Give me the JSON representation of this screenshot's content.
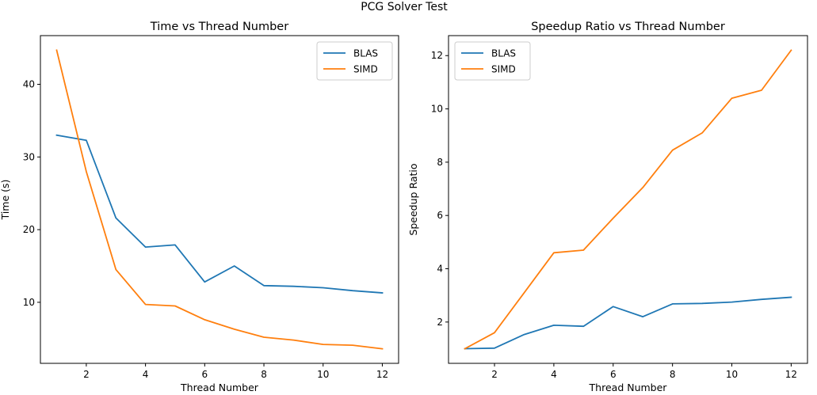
{
  "figure_title": "PCG Solver Test",
  "chart_data": [
    {
      "type": "line",
      "title": "Time vs Thread Number",
      "xlabel": "Thread Number",
      "ylabel": "Time (s)",
      "x": [
        1,
        2,
        3,
        4,
        5,
        6,
        7,
        8,
        9,
        10,
        11,
        12
      ],
      "xlim": [
        0.45,
        12.55
      ],
      "ylim": [
        1.6,
        46.7
      ],
      "xticks": [
        2,
        4,
        6,
        8,
        10,
        12
      ],
      "yticks": [
        10,
        20,
        30,
        40
      ],
      "grid": false,
      "legend": "top-right",
      "series": [
        {
          "name": "BLAS",
          "color": "#1f77b4",
          "values": [
            33.0,
            32.3,
            21.6,
            17.6,
            17.9,
            12.8,
            15.0,
            12.3,
            12.2,
            12.0,
            11.6,
            11.3
          ]
        },
        {
          "name": "SIMD",
          "color": "#ff7f0e",
          "values": [
            44.7,
            28.0,
            14.5,
            9.7,
            9.5,
            7.6,
            6.3,
            5.2,
            4.8,
            4.2,
            4.1,
            3.6
          ]
        }
      ]
    },
    {
      "type": "line",
      "title": "Speedup Ratio vs Thread Number",
      "xlabel": "Thread Number",
      "ylabel": "Speedup Ratio",
      "x": [
        1,
        2,
        3,
        4,
        5,
        6,
        7,
        8,
        9,
        10,
        11,
        12
      ],
      "xlim": [
        0.45,
        12.55
      ],
      "ylim": [
        0.45,
        12.75
      ],
      "xticks": [
        2,
        4,
        6,
        8,
        10,
        12
      ],
      "yticks": [
        2,
        4,
        6,
        8,
        10,
        12
      ],
      "grid": false,
      "legend": "top-left",
      "series": [
        {
          "name": "BLAS",
          "color": "#1f77b4",
          "values": [
            1.0,
            1.02,
            1.53,
            1.88,
            1.84,
            2.58,
            2.2,
            2.68,
            2.7,
            2.75,
            2.85,
            2.93
          ]
        },
        {
          "name": "SIMD",
          "color": "#ff7f0e",
          "values": [
            1.0,
            1.6,
            3.1,
            4.6,
            4.7,
            5.9,
            7.05,
            8.45,
            9.1,
            10.4,
            10.7,
            12.2
          ]
        }
      ]
    }
  ]
}
